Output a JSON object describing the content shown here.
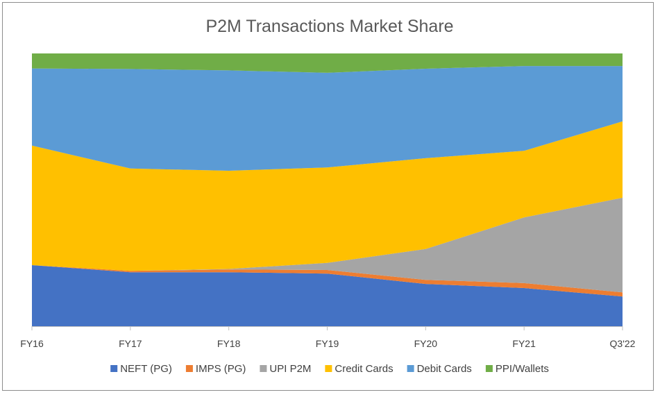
{
  "chart_data": {
    "type": "area",
    "stacked": "100%",
    "title": "P2M Transactions Market Share",
    "xlabel": "",
    "ylabel": "",
    "ylim": [
      0,
      100
    ],
    "categories": [
      "FY16",
      "FY17",
      "FY18",
      "FY19",
      "FY20",
      "FY21",
      "Q3'22"
    ],
    "grid": false,
    "legend": "bottom",
    "series": [
      {
        "name": "NEFT (PG)",
        "color": "#4472C4",
        "values": [
          22.4,
          19.8,
          19.8,
          19.3,
          15.5,
          14.0,
          10.9
        ]
      },
      {
        "name": "IMPS (PG)",
        "color": "#ED7D31",
        "values": [
          0.0,
          0.5,
          1.0,
          1.3,
          1.5,
          1.8,
          1.5
        ]
      },
      {
        "name": "UPI P2M",
        "color": "#A5A5A5",
        "values": [
          0.0,
          0.0,
          0.2,
          2.6,
          11.3,
          24.1,
          34.7
        ]
      },
      {
        "name": "Credit Cards",
        "color": "#FFC000",
        "values": [
          43.8,
          37.5,
          36.0,
          35.0,
          33.3,
          24.4,
          28.0
        ]
      },
      {
        "name": "Debit Cards",
        "color": "#5B9BD5",
        "values": [
          28.3,
          36.5,
          36.8,
          34.7,
          32.8,
          31.1,
          20.3
        ]
      },
      {
        "name": "PPI/Wallets",
        "color": "#70AD47",
        "values": [
          5.5,
          5.7,
          6.2,
          7.1,
          5.6,
          4.6,
          4.6
        ]
      }
    ]
  }
}
